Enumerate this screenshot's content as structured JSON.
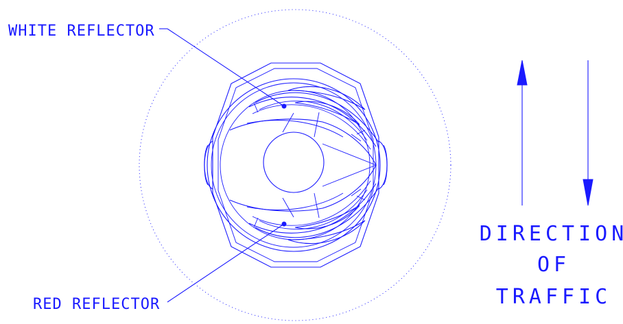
{
  "labels": {
    "white_reflector": "WHITE REFLECTOR",
    "red_reflector": "RED REFLECTOR",
    "direction_line1": "DIRECTION",
    "direction_line2": "OF",
    "direction_line3": "TRAFFIC"
  },
  "colors": {
    "line": "#1a1aff",
    "background": "#ffffff"
  }
}
